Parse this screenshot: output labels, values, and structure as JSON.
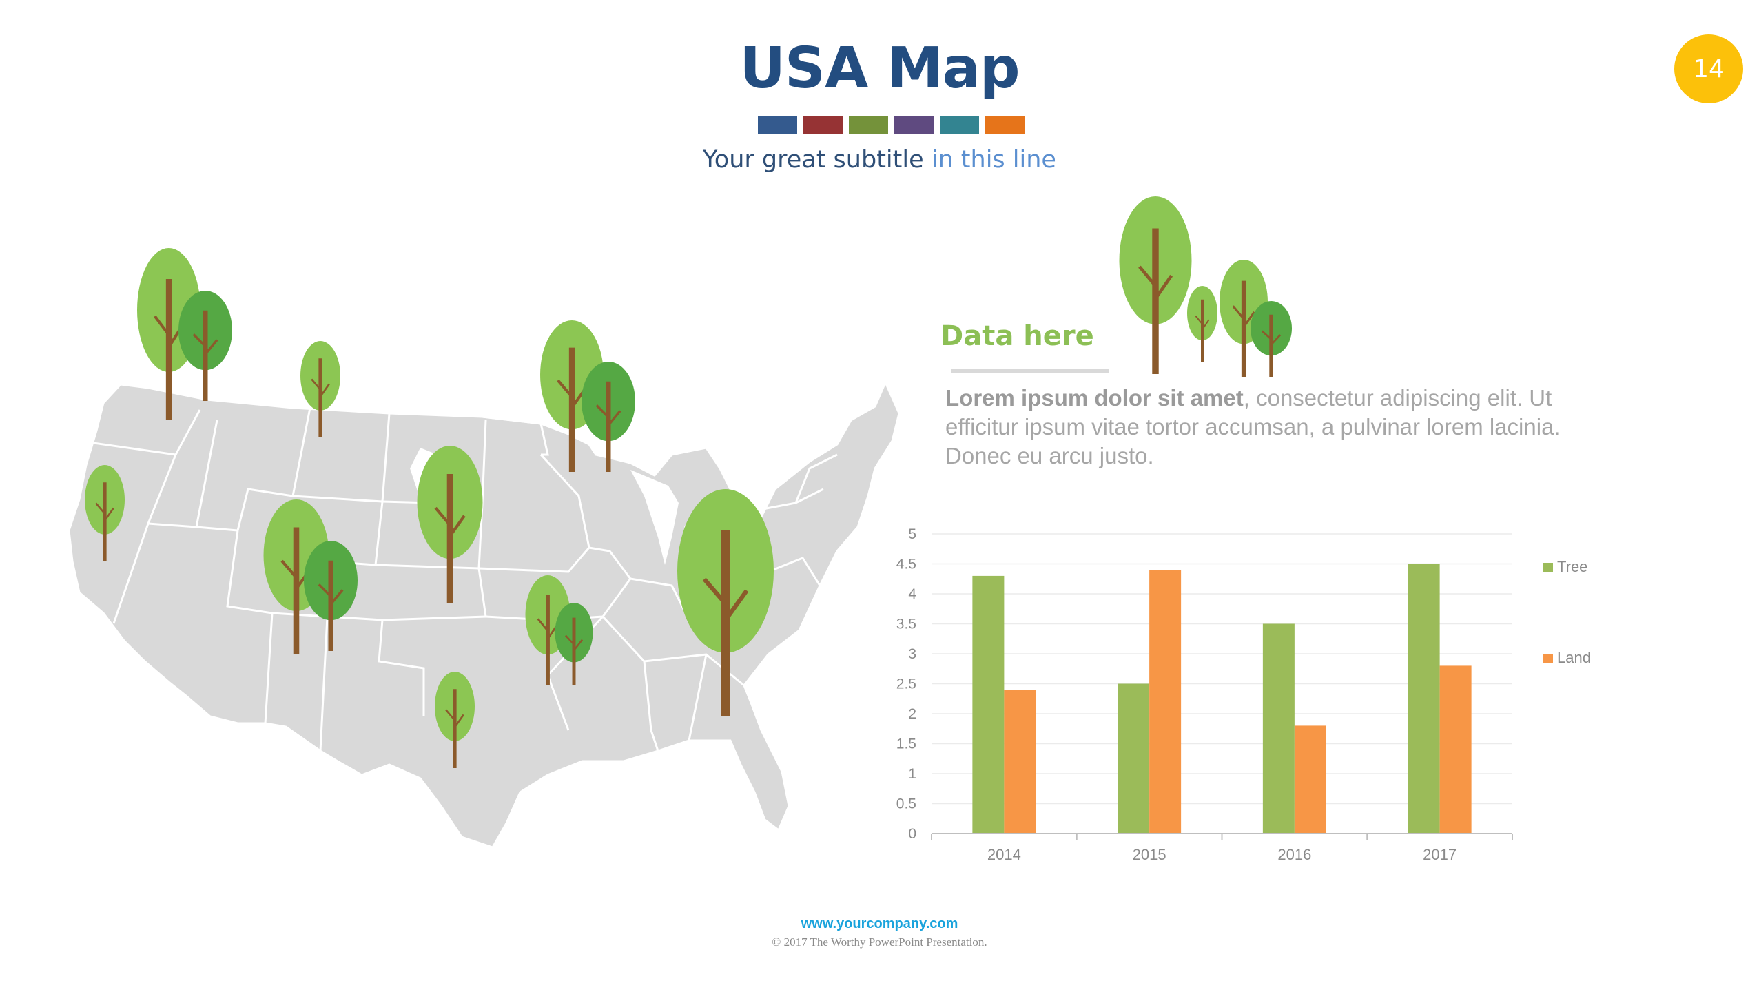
{
  "slide": {
    "title": "USA Map",
    "subtitle_main": "Your great subtitle",
    "subtitle_highlight": " in this line",
    "page_number": "14",
    "swatch_colors": [
      "#345a8e",
      "#963334",
      "#74923a",
      "#5f4a80",
      "#338491",
      "#e6741a"
    ]
  },
  "content": {
    "heading": "Data here",
    "body_bold": "Lorem ipsum dolor sit amet",
    "body_rest": ", consectetur adipiscing elit. Ut efficitur ipsum vitae tortor accumsan, a pulvinar lorem lacinia. Donec eu arcu justo."
  },
  "footer": {
    "url": "www.yourcompany.com",
    "copyright": "© 2017 The Worthy PowerPoint Presentation."
  },
  "chart_data": {
    "type": "bar",
    "categories": [
      "2014",
      "2015",
      "2016",
      "2017"
    ],
    "series": [
      {
        "name": "Tree",
        "values": [
          4.3,
          2.5,
          3.5,
          4.5
        ],
        "color": "#9bbb59"
      },
      {
        "name": "Land",
        "values": [
          2.4,
          4.4,
          1.8,
          2.8
        ],
        "color": "#f79646"
      }
    ],
    "y_ticks": [
      "0",
      "0.5",
      "1",
      "1.5",
      "2",
      "2.5",
      "3",
      "3.5",
      "4",
      "4.5",
      "5"
    ],
    "ylim": [
      0,
      5
    ],
    "grid": true,
    "legend_position": "right"
  }
}
